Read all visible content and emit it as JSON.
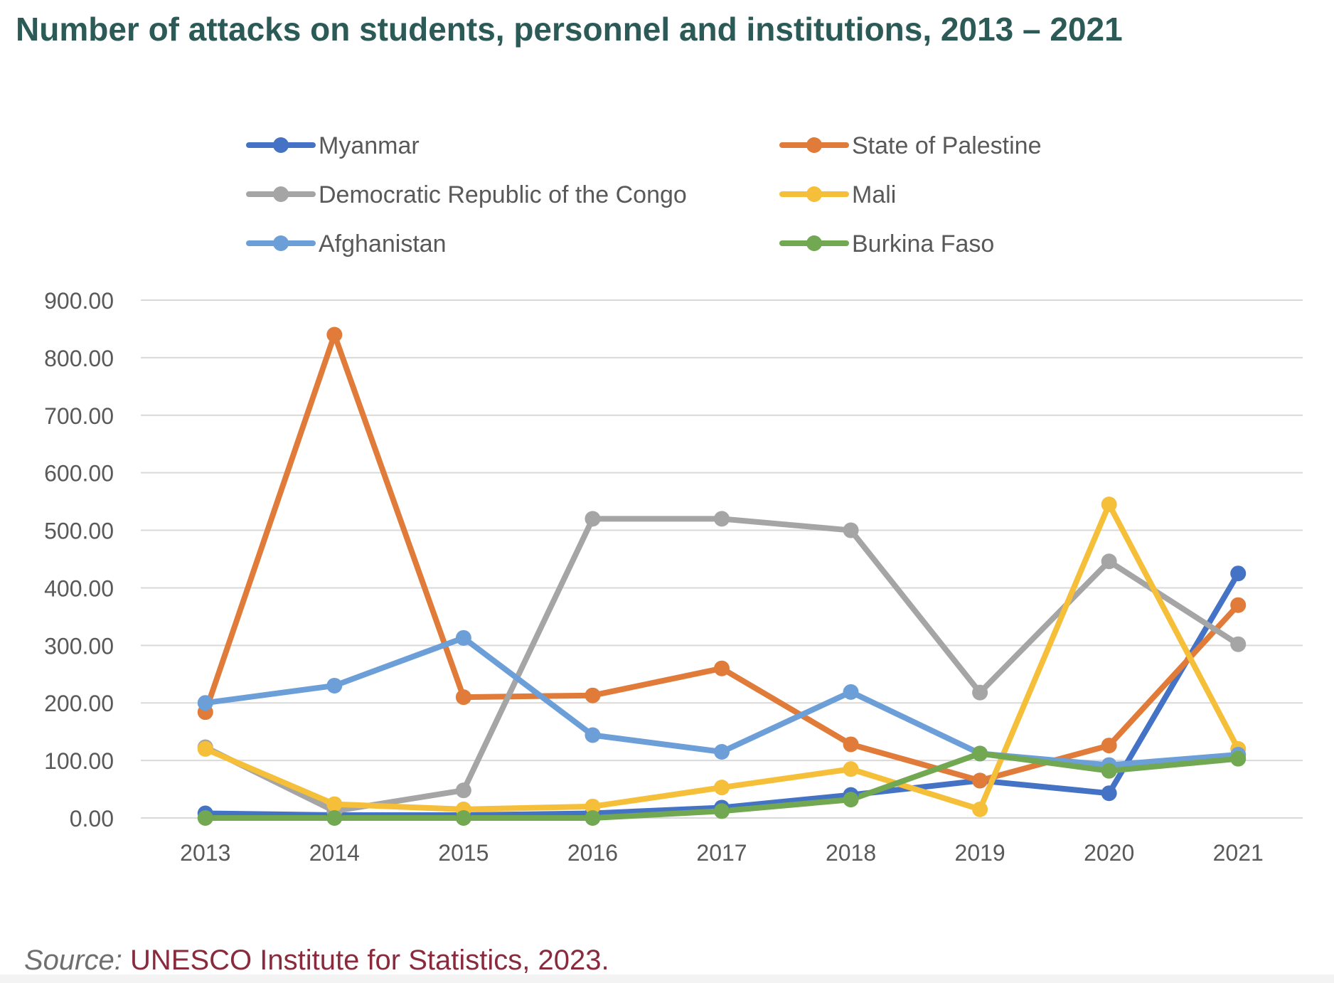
{
  "title": "Number of attacks on students, personnel and institutions, 2013 – 2021",
  "source": {
    "prefix": "Source:",
    "text": "UNESCO Institute for Statistics, 2023."
  },
  "chart_data": {
    "type": "line",
    "title": "Number of attacks on students, personnel and institutions, 2013 – 2021",
    "xlabel": "",
    "ylabel": "",
    "categories": [
      "2013",
      "2014",
      "2015",
      "2016",
      "2017",
      "2018",
      "2019",
      "2020",
      "2021"
    ],
    "ylim": [
      0,
      900
    ],
    "yticks": [
      "0.00",
      "100.00",
      "200.00",
      "300.00",
      "400.00",
      "500.00",
      "600.00",
      "700.00",
      "800.00",
      "900.00"
    ],
    "grid": true,
    "legend_position": "top",
    "series": [
      {
        "name": "Myanmar",
        "color": "#4472c4",
        "values": [
          8,
          5,
          5,
          8,
          18,
          40,
          65,
          43,
          425
        ]
      },
      {
        "name": "State of Palestine",
        "color": "#e07b39",
        "values": [
          184,
          840,
          210,
          213,
          260,
          128,
          65,
          126,
          370
        ]
      },
      {
        "name": "Democratic Republic of the Congo",
        "color": "#a5a5a5",
        "values": [
          123,
          12,
          48,
          520,
          520,
          500,
          218,
          446,
          302
        ]
      },
      {
        "name": "Mali",
        "color": "#f5bf3a",
        "values": [
          120,
          24,
          15,
          20,
          53,
          85,
          15,
          545,
          120
        ]
      },
      {
        "name": "Afghanistan",
        "color": "#6c9fd8",
        "values": [
          200,
          230,
          313,
          144,
          115,
          219,
          112,
          92,
          110
        ]
      },
      {
        "name": "Burkina Faso",
        "color": "#71a851",
        "values": [
          0,
          0,
          0,
          0,
          12,
          32,
          112,
          82,
          103
        ]
      }
    ]
  }
}
